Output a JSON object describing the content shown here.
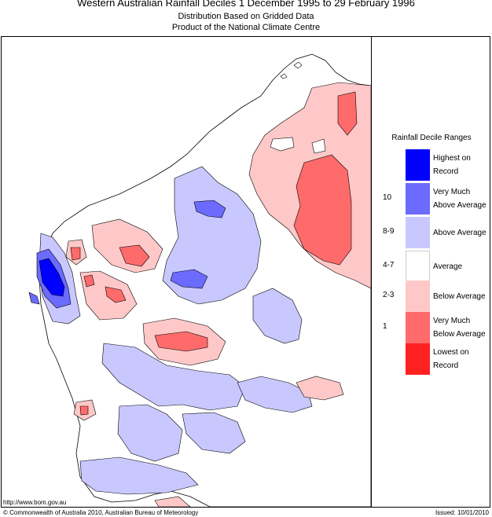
{
  "title": "Western Australian Rainfall Deciles     1 December 1995 to 29 February 1996",
  "subtitle1": "Distribution Based on Gridded Data",
  "subtitle2": "Product of the National Climate Centre",
  "legend": {
    "title": "Rainfall Decile Ranges",
    "items": [
      {
        "code": "",
        "label": "Highest on Record",
        "color": "#0000ff"
      },
      {
        "code": "10",
        "label": "Very Much Above Average",
        "color": "#6b6bff"
      },
      {
        "code": "8-9",
        "label": "Above Average",
        "color": "#c8c8ff"
      },
      {
        "code": "4-7",
        "label": "Average",
        "color": "#ffffff"
      },
      {
        "code": "2-3",
        "label": "Below Average",
        "color": "#ffc8c8"
      },
      {
        "code": "1",
        "label": "Very Much Below Average",
        "color": "#ff6b6b"
      },
      {
        "code": "",
        "label": "Lowest on Record",
        "color": "#ff2020"
      }
    ]
  },
  "footer": {
    "url": "http://www.bom.gov.au",
    "copyright": "© Commonwealth of Australia 2010, Australian Bureau of Meteorology",
    "issued": "Issued: 10/01/2010"
  }
}
